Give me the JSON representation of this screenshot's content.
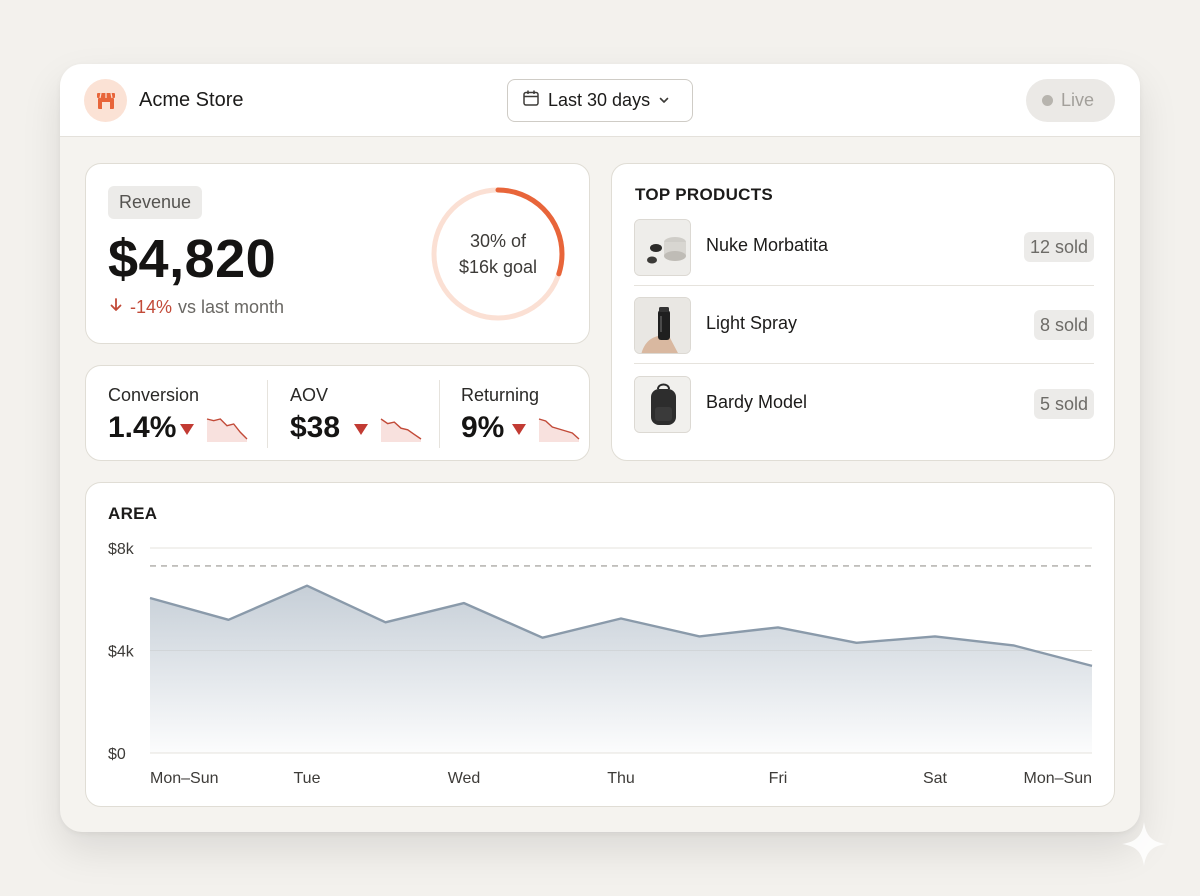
{
  "header": {
    "store_name": "Acme Store",
    "date_range": "Last 30 days",
    "live_label": "Live"
  },
  "revenue": {
    "label": "Revenue",
    "value": "$4,820",
    "change_pct": "-14%",
    "change_text": "vs last month",
    "goal_progress": 0.3,
    "goal_line1": "30% of",
    "goal_line2": "$16k goal"
  },
  "metrics": [
    {
      "label": "Conversion",
      "value": "1.4%",
      "trend": [
        8,
        7.5,
        8,
        6,
        6.5,
        4,
        2
      ]
    },
    {
      "label": "AOV",
      "value": "$38",
      "trend": [
        8,
        6.5,
        7,
        5,
        4.5,
        3,
        1.5
      ]
    },
    {
      "label": "Returning",
      "value": "9%",
      "trend": [
        7,
        6.5,
        5,
        4.5,
        4,
        3.5,
        2
      ]
    }
  ],
  "top_products": {
    "title": "TOP PRODUCTS",
    "items": [
      {
        "name": "Nuke Morbatita",
        "sold": "12 sold"
      },
      {
        "name": "Light Spray",
        "sold": "8 sold"
      },
      {
        "name": "Bardy Model",
        "sold": "5 sold"
      }
    ]
  },
  "colors": {
    "accent": "#e8653a",
    "negative": "#c24a38",
    "series": "#8a9aaa"
  },
  "chart_data": {
    "type": "area",
    "title": "AREA",
    "x_tick_labels": [
      "Mon–Sun",
      "Tue",
      "Wed",
      "Thu",
      "Fri",
      "Sat",
      "Mon–Sun"
    ],
    "y_tick_labels": [
      "$8k",
      "$4k",
      "$0"
    ],
    "ylim": [
      0,
      8000
    ],
    "target_value": 7300,
    "grid": true,
    "values": [
      6050,
      5200,
      6530,
      5100,
      5850,
      4500,
      5250,
      4550,
      4900,
      4300,
      4550,
      4200,
      3400
    ]
  }
}
